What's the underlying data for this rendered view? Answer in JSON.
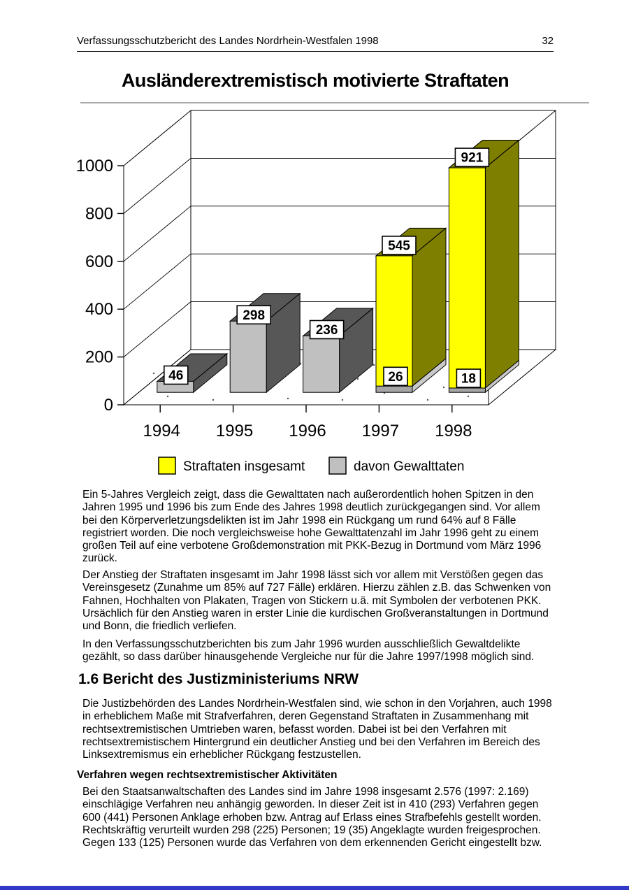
{
  "header": {
    "title": "Verfassungsschutzbericht des Landes Nordrhein-Westfalen 1998",
    "page_number": "32"
  },
  "chart_data": {
    "type": "bar",
    "style": "3d-stacked-column",
    "title": "Ausländerextremistisch motivierte Straftaten",
    "categories": [
      "1994",
      "1995",
      "1996",
      "1997",
      "1998"
    ],
    "series": [
      {
        "name": "Straftaten insgesamt",
        "values": [
          null,
          null,
          null,
          545,
          921
        ],
        "front_color": "#ffff00",
        "side_color": "#7e7e00"
      },
      {
        "name": "davon Gewalttaten",
        "values": [
          46,
          298,
          236,
          26,
          18
        ],
        "front_color": "#c0c0c0",
        "side_color": "#575757",
        "occluded_front_color": "#a5a5a5",
        "occluded_side_color": "#c9c9c9"
      }
    ],
    "xlabel": "",
    "ylabel": "",
    "ylim": [
      0,
      1000
    ],
    "ytick_step": 200,
    "grid": true,
    "legend_position": "bottom",
    "data_labels": true
  },
  "body": {
    "p1": "Ein 5-Jahres Vergleich zeigt, dass die Gewalttaten nach außerordentlich hohen Spitzen in den Jahren 1995 und 1996 bis zum Ende des Jahres 1998 deutlich zurückgegangen sind. Vor allem bei den Körperverletzungsdelikten ist im Jahr 1998 ein Rückgang um rund 64% auf 8 Fälle registriert worden. Die noch vergleichsweise hohe Gewalttatenzahl im Jahr 1996 geht zu einem großen Teil auf eine verbotene Großdemonstration mit PKK-Bezug in Dortmund vom März 1996 zurück.",
    "p2": "Der Anstieg der Straftaten insgesamt im Jahr 1998 lässt sich vor allem mit Verstößen gegen das Vereinsgesetz (Zunahme um 85% auf 727 Fälle) erklären. Hierzu zählen z.B. das Schwenken von Fahnen, Hochhalten von Plakaten, Tragen von Stickern u.ä. mit Symbolen der verbotenen PKK. Ursächlich für den Anstieg waren in erster Linie die kurdischen Großveranstaltungen in Dortmund und Bonn, die friedlich verliefen.",
    "p3": "In den Verfassungsschutzberichten bis zum Jahr 1996 wurden ausschließlich Gewaltdelikte gezählt, so dass darüber hinausgehende Vergleiche nur für die Jahre 1997/1998 möglich sind.",
    "heading": "1.6 Bericht des Justizministeriums NRW",
    "p4": "Die Justizbehörden des Landes Nordrhein-Westfalen sind, wie schon in den Vorjahren, auch 1998 in erheblichem Maße mit Strafverfahren, deren Gegenstand Straftaten in Zusammenhang mit rechtsextremistischen Umtrieben waren, befasst worden. Dabei ist bei den Verfahren mit rechtsextremistischem Hintergrund ein deutlicher Anstieg und bei den Verfahren im Bereich des Linksextremismus ein erheblicher Rückgang festzustellen.",
    "subheading": "Verfahren wegen rechtsextremistischer Aktivitäten",
    "p5": "Bei den Staatsanwaltschaften des Landes sind im Jahre 1998 insgesamt 2.576 (1997: 2.169) einschlägige Verfahren neu anhängig geworden. In dieser Zeit ist in 410 (293) Verfahren gegen 600 (441) Personen Anklage erhoben bzw. Antrag auf Erlass eines Strafbefehls gestellt worden. Rechtskräftig verurteilt wurden 298 (225) Personen; 19 (35) Angeklagte wurden freigesprochen. Gegen 133 (125) Personen wurde das Verfahren von dem erkennenden Gericht eingestellt bzw."
  }
}
